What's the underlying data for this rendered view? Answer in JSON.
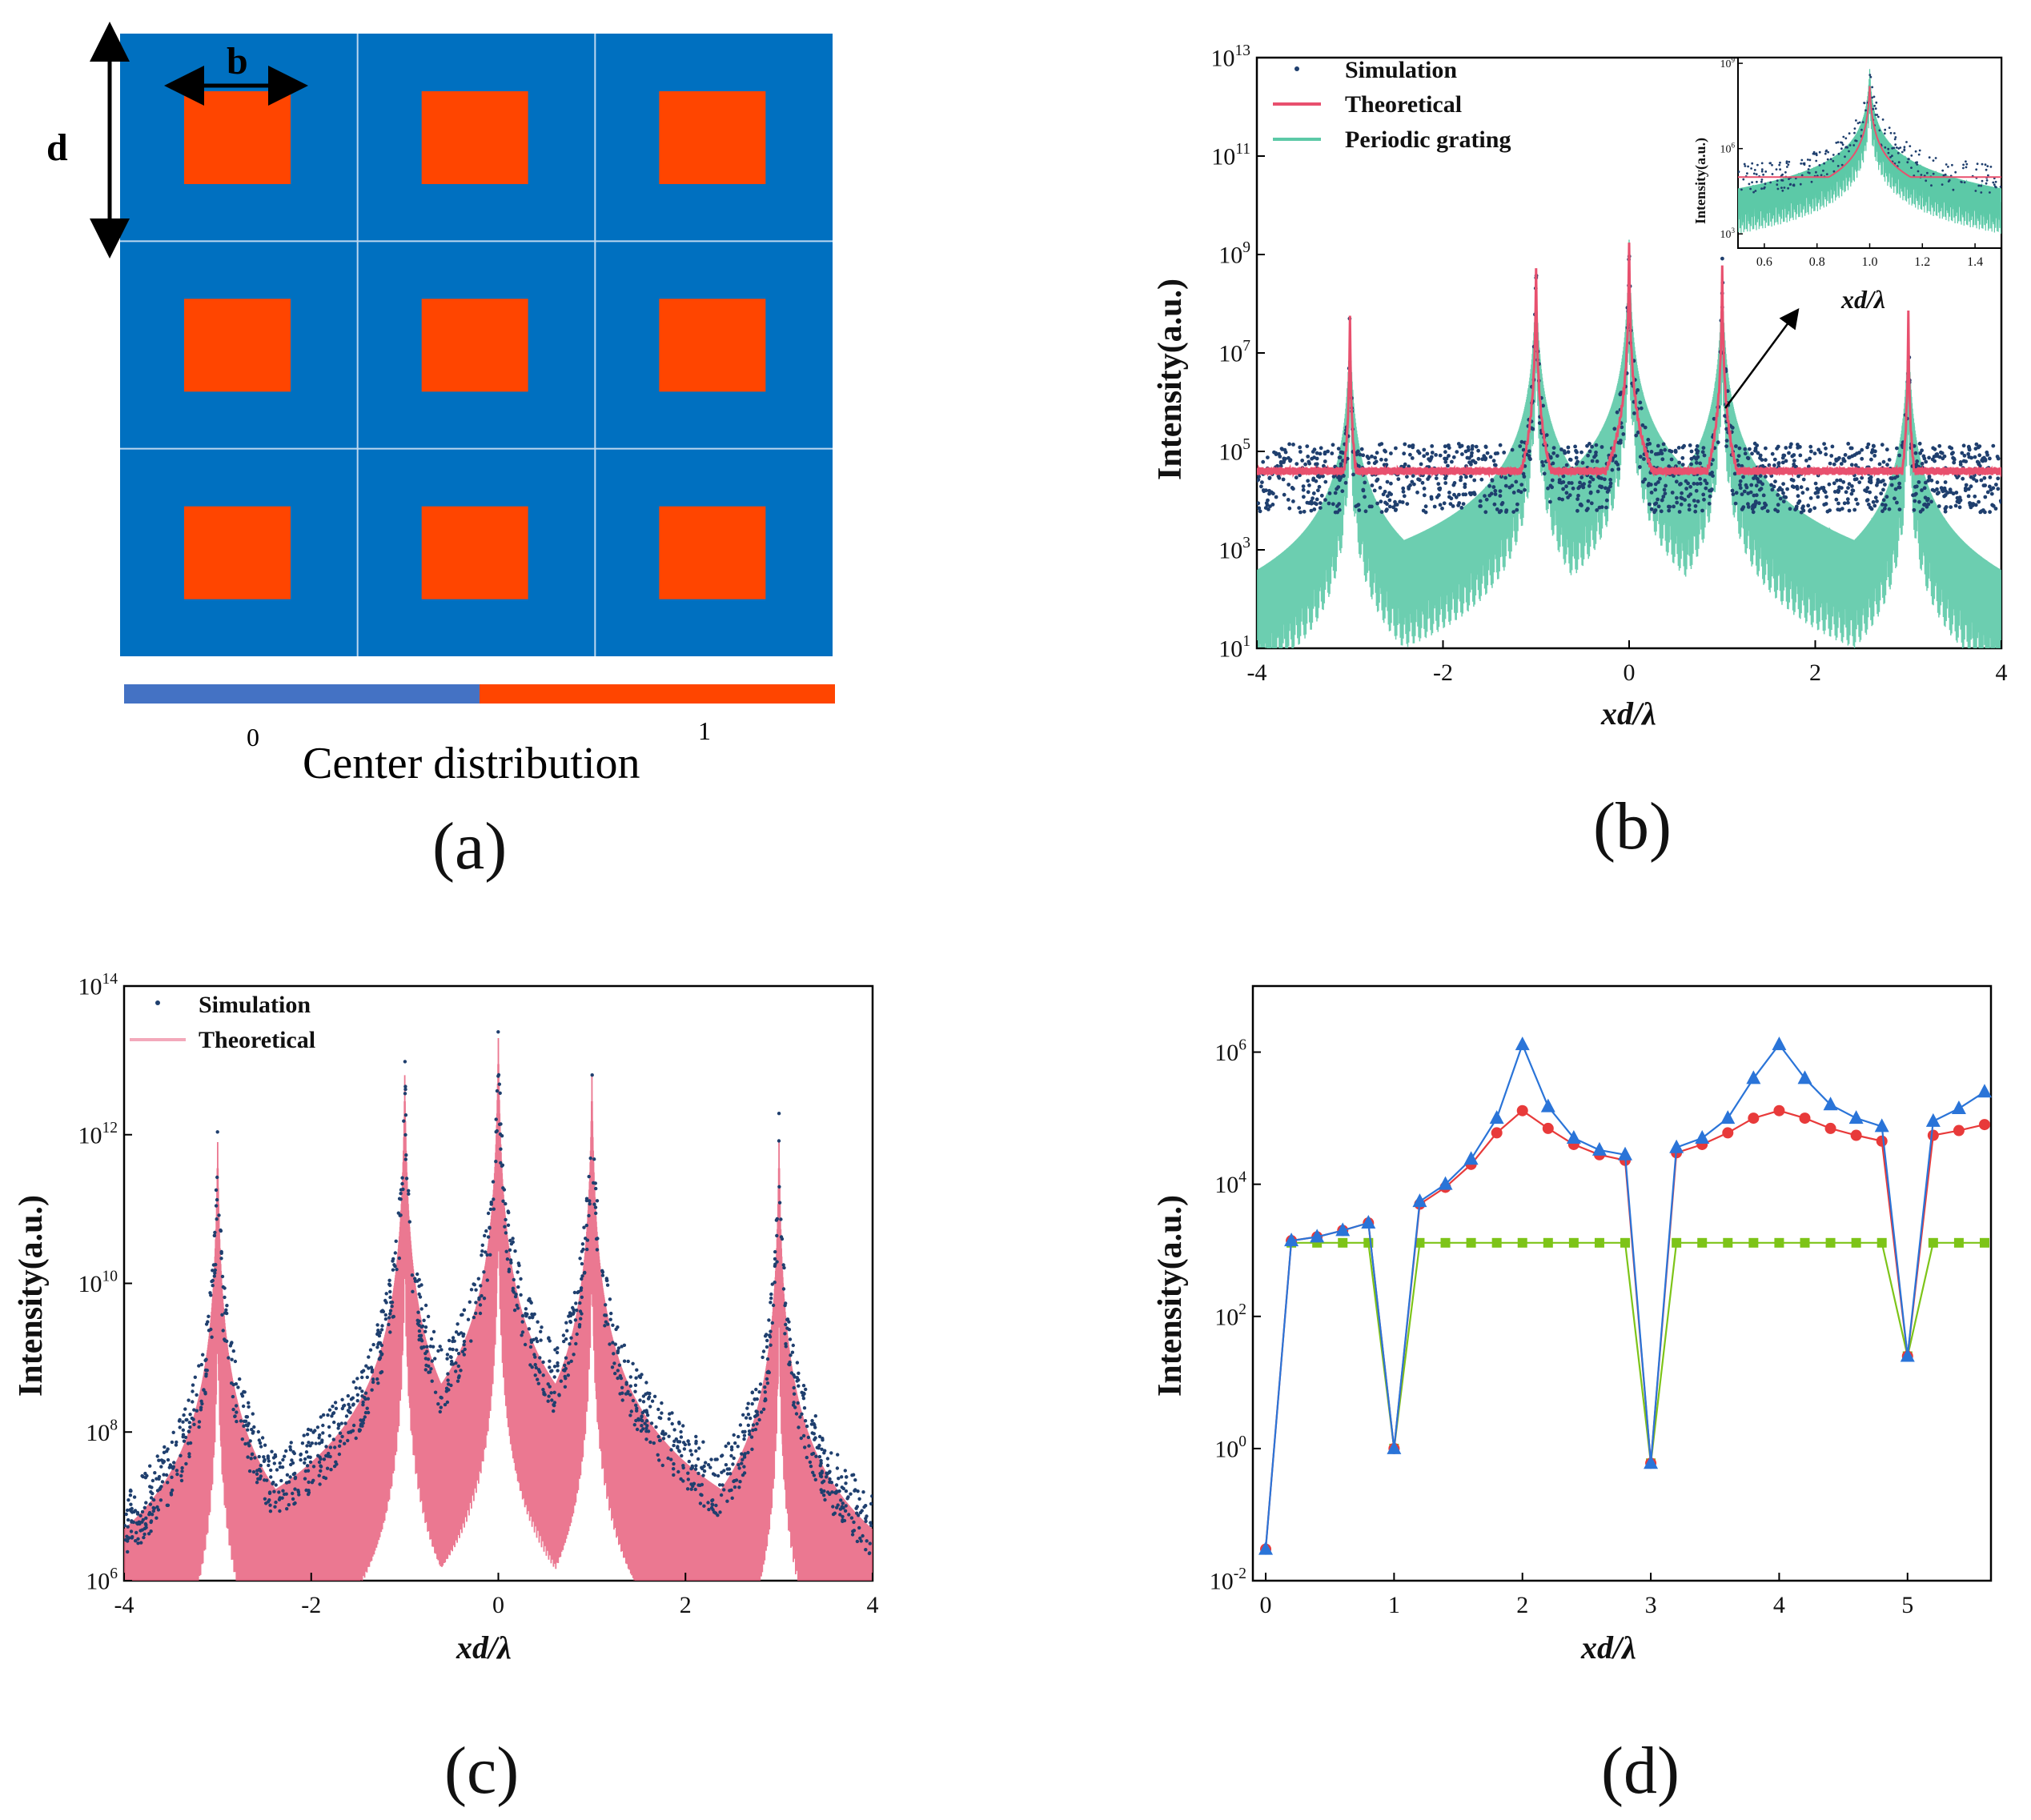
{
  "figure": {
    "labels": [
      "(a)",
      "(b)",
      "(c)",
      "(d)"
    ]
  },
  "panel_a": {
    "cell_label": "b",
    "period_label": "d",
    "colorbar": {
      "label": "Center distribution",
      "min_label": "0",
      "max_label": "1"
    },
    "colors": {
      "background": "#0070c0",
      "square": "#ff4500",
      "grid_line": "#bcd7ef",
      "bar_low": "#4472c4",
      "bar_high": "#ff4500"
    },
    "grid": {
      "rows": 3,
      "cols": 3
    }
  },
  "chart_data": [
    {
      "id": "b",
      "type": "scatter+line",
      "xlabel": "xd/λ",
      "ylabel": "Intensity(a.u.)",
      "xlim": [
        -4,
        4
      ],
      "xticks": [
        -4,
        -2,
        0,
        2,
        4
      ],
      "yscale": "log",
      "ylim_exp": [
        1,
        13
      ],
      "yticks_exp": [
        1,
        3,
        5,
        7,
        9,
        11,
        13
      ],
      "legend": [
        "Simulation",
        "Theoretical",
        "Periodic grating"
      ],
      "peaks": [
        {
          "x": -3,
          "exp": 7.8
        },
        {
          "x": -1,
          "exp": 8.8
        },
        {
          "x": 0,
          "exp": 9.3
        },
        {
          "x": 1,
          "exp": 8.8
        },
        {
          "x": 3,
          "exp": 7.8
        }
      ],
      "background_exp": 4.6,
      "grating_floor_exp": 2.5,
      "colors": {
        "simulation": "#1f3f6e",
        "theoretical": "#e8506e",
        "grating": "#5cc9a7"
      },
      "inset": {
        "xlabel": "xd/λ",
        "ylabel": "Intensity(a.u.)",
        "xlim": [
          0.5,
          1.5
        ],
        "xticks": [
          "0.6",
          "0.8",
          "1.0",
          "1.2",
          "1.4"
        ],
        "yticks_exp": [
          3,
          6,
          9
        ],
        "peak": {
          "x": 1.0,
          "exp": 8.8
        }
      }
    },
    {
      "id": "c",
      "type": "scatter+line",
      "xlabel": "xd/λ",
      "ylabel": "Intensity(a.u.)",
      "xlim": [
        -4,
        4
      ],
      "xticks": [
        -4,
        -2,
        0,
        2,
        4
      ],
      "yscale": "log",
      "ylim_exp": [
        6,
        14
      ],
      "yticks_exp": [
        6,
        8,
        10,
        12,
        14
      ],
      "legend": [
        "Simulation",
        "Theoretical"
      ],
      "peaks": [
        {
          "x": -3,
          "exp": 11.9
        },
        {
          "x": -1,
          "exp": 12.8
        },
        {
          "x": 0,
          "exp": 13.3
        },
        {
          "x": 1,
          "exp": 12.8
        },
        {
          "x": 3,
          "exp": 11.9
        }
      ],
      "background_exp": 6.7,
      "colors": {
        "simulation": "#1f3f6e",
        "theoretical": "#e8607e"
      }
    },
    {
      "id": "d",
      "type": "line",
      "xlabel": "xd/λ",
      "ylabel": "Intensity(a.u.)",
      "xlim": [
        -0.1,
        5.65
      ],
      "xticks": [
        0,
        1,
        2,
        3,
        4,
        5
      ],
      "yscale": "log",
      "ylim_exp": [
        -2,
        7
      ],
      "yticks_exp": [
        -2,
        0,
        2,
        4,
        6
      ],
      "x": [
        0,
        0.2,
        0.4,
        0.6,
        0.8,
        1.0,
        1.2,
        1.4,
        1.6,
        1.8,
        2.0,
        2.2,
        2.4,
        2.6,
        2.8,
        3.0,
        3.2,
        3.4,
        3.6,
        3.8,
        4.0,
        4.2,
        4.4,
        4.6,
        4.8,
        5.0,
        5.2,
        5.4,
        5.6
      ],
      "series": [
        {
          "name": "blue-triangles",
          "marker": "triangle",
          "color": "#2a74d8",
          "values": [
            0.03,
            1400,
            1600,
            2000,
            2600,
            1.0,
            5500,
            10000,
            24000,
            100000,
            1300000,
            150000,
            50000,
            33000,
            28000,
            0.6,
            36000,
            50000,
            100000,
            400000,
            1300000,
            400000,
            160000,
            100000,
            75000,
            25,
            90000,
            140000,
            250000
          ]
        },
        {
          "name": "red-circles",
          "marker": "circle",
          "color": "#e83a3a",
          "values": [
            0.03,
            1400,
            1600,
            2000,
            2600,
            1.0,
            5000,
            9000,
            20000,
            60000,
            130000,
            70000,
            40000,
            28000,
            23000,
            0.6,
            30000,
            40000,
            60000,
            100000,
            130000,
            100000,
            70000,
            55000,
            45000,
            25,
            55000,
            65000,
            80000
          ]
        },
        {
          "name": "green-squares",
          "marker": "square",
          "color": "#7dc418",
          "values": [
            null,
            1300,
            1300,
            1300,
            1300,
            1.0,
            1300,
            1300,
            1300,
            1300,
            1300,
            1300,
            1300,
            1300,
            1300,
            0.6,
            1300,
            1300,
            1300,
            1300,
            1300,
            1300,
            1300,
            1300,
            1300,
            25,
            1300,
            1300,
            1300
          ]
        }
      ]
    }
  ]
}
